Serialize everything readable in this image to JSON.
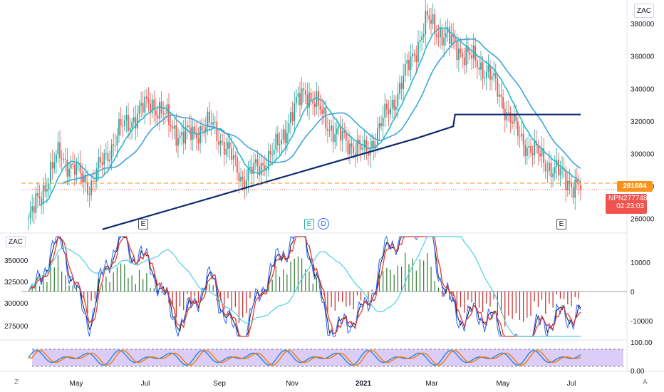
{
  "symbol_label": "ZAC",
  "symbol_label_secondary": "ZAC",
  "price_tags": {
    "level_price": "281684",
    "last_ticker": "NPN",
    "last_price": "277748",
    "countdown": "02:23:03"
  },
  "earnings_markers": [
    "E",
    "E",
    "D",
    "E"
  ],
  "bottom_left_button": "Z",
  "bottom_right_button": "A",
  "colors": {
    "up": "#26a69a",
    "down": "#ef5350",
    "ma_fast": "#22b8cf",
    "ma_mid": "#3ea4d9",
    "ma_long": "#0d2a6e",
    "dashed_level": "#f7931a",
    "stoch_fill": "#d6c3f7"
  },
  "chart_data": [
    {
      "type": "candlestick",
      "title": "",
      "x_labels": [
        "May",
        "Jul",
        "Sep",
        "Nov",
        "2021",
        "Mar",
        "May",
        "Jul"
      ],
      "y_ticks": [
        260000,
        280000,
        300000,
        320000,
        340000,
        360000,
        380000
      ],
      "ylim": [
        254000,
        388000
      ],
      "approx_close_path": [
        {
          "x": "Apr",
          "y": 258000
        },
        {
          "x": "May",
          "y": 300000
        },
        {
          "x": "May-late",
          "y": 280000
        },
        {
          "x": "Jun",
          "y": 315000
        },
        {
          "x": "Jul",
          "y": 332000
        },
        {
          "x": "Aug",
          "y": 310000
        },
        {
          "x": "Sep",
          "y": 318000
        },
        {
          "x": "Sep-late",
          "y": 284000
        },
        {
          "x": "Oct",
          "y": 300000
        },
        {
          "x": "Nov",
          "y": 340000
        },
        {
          "x": "Dec",
          "y": 312000
        },
        {
          "x": "Dec-late",
          "y": 300000
        },
        {
          "x": "2021",
          "y": 336000
        },
        {
          "x": "Feb",
          "y": 382000
        },
        {
          "x": "Mar",
          "y": 365000
        },
        {
          "x": "Apr",
          "y": 350000
        },
        {
          "x": "May",
          "y": 310000
        },
        {
          "x": "Jun",
          "y": 292000
        },
        {
          "x": "Jul",
          "y": 277748
        }
      ],
      "series": [
        {
          "name": "",
          "kind": "ma_fast"
        },
        {
          "name": "",
          "kind": "ma_mid"
        },
        {
          "name": "",
          "kind": "ma_long"
        }
      ],
      "level_lines": [
        281684,
        277748
      ]
    },
    {
      "type": "line",
      "title": "",
      "left_ticks": [
        275000,
        300000,
        325000,
        350000
      ],
      "right_ticks": [
        10000,
        0,
        -10000
      ],
      "histogram": "positive and negative bars around zero"
    },
    {
      "type": "line",
      "title": "",
      "y_ticks": [
        "100.00",
        "0.00"
      ],
      "ylim": [
        0,
        100
      ]
    }
  ]
}
